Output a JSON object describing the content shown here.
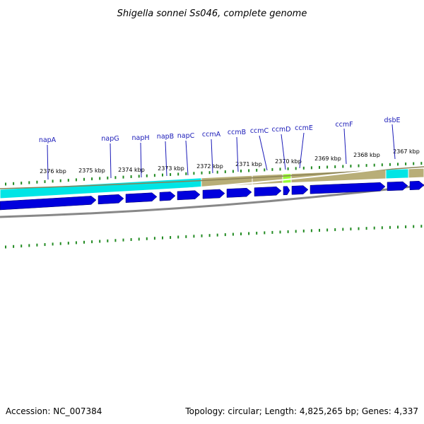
{
  "title": "Shigella sonnei Ss046, complete genome",
  "footer": {
    "accession": "Accession: NC_007384",
    "summary": "Topology: circular; Length: 4,825,265 bp; Genes: 4,337"
  },
  "colors": {
    "gene_label": "#1a1ab8",
    "gene_arrow": "#0000dd",
    "cyan_segment": "#00e5e5",
    "olive_segment": "#b8ae78",
    "lime_segment": "#99ff33",
    "tick_green": "#228b22",
    "backbone_gray": "#888888"
  },
  "ruler_labels": [
    "2376 kbp",
    "2375 kbp",
    "2374 kbp",
    "2373 kbp",
    "2372 kbp",
    "2371 kbp",
    "2370 kbp",
    "2369 kbp",
    "2368 kbp",
    "2367 kbp"
  ],
  "genes": [
    "napA",
    "napG",
    "napH",
    "napB",
    "napC",
    "ccmA",
    "ccmB",
    "ccmC",
    "ccmD",
    "ccmE",
    "ccmF",
    "dsbE"
  ]
}
